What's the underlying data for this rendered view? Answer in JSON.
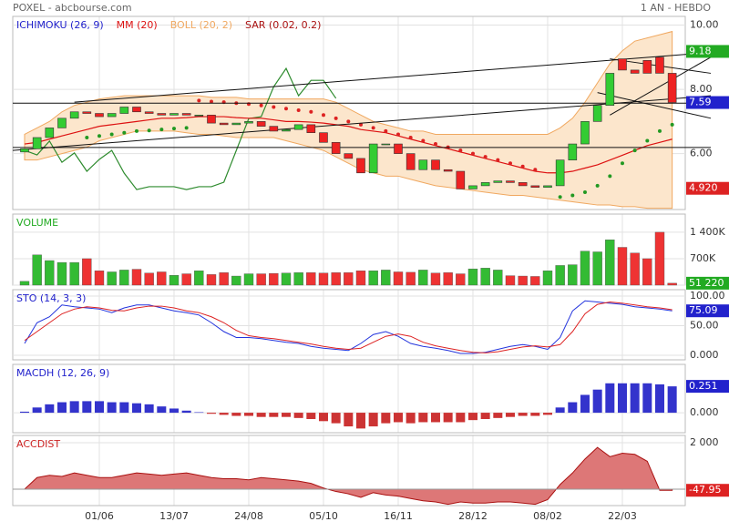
{
  "header": {
    "title": "POXEL - abcbourse.com",
    "period": "1 AN - HEBDO"
  },
  "chart_data": [
    {
      "type": "candlestick",
      "categories": [
        null,
        null,
        null,
        null,
        null,
        null,
        "01/06",
        null,
        null,
        null,
        null,
        null,
        "13/07",
        null,
        null,
        null,
        null,
        null,
        "24/08",
        null,
        null,
        null,
        null,
        null,
        "05/10",
        null,
        null,
        null,
        null,
        null,
        "16/11",
        null,
        null,
        null,
        null,
        null,
        "28/12",
        null,
        null,
        null,
        null,
        null,
        "08/02",
        null,
        null,
        null,
        null,
        null,
        "22/03",
        null,
        null,
        null,
        null
      ],
      "open": [
        6.05,
        6.15,
        6.5,
        6.8,
        7.1,
        7.3,
        7.25,
        7.15,
        7.25,
        7.45,
        7.3,
        7.25,
        7.2,
        7.25,
        7.2,
        7.2,
        6.95,
        6.9,
        6.95,
        7.0,
        6.85,
        6.7,
        6.75,
        6.9,
        6.65,
        6.35,
        6.0,
        5.85,
        5.4,
        6.3,
        6.3,
        6.0,
        5.5,
        5.8,
        5.5,
        5.45,
        4.9,
        5.0,
        5.1,
        5.15,
        5.1,
        5.0,
        4.95,
        5.0,
        5.8,
        6.3,
        7.0,
        7.5,
        8.95,
        8.6,
        8.9,
        9.0,
        8.5
      ],
      "close": [
        6.15,
        6.5,
        6.8,
        7.1,
        7.3,
        7.25,
        7.15,
        7.25,
        7.45,
        7.3,
        7.25,
        7.2,
        7.25,
        7.2,
        7.2,
        6.95,
        6.9,
        6.95,
        7.0,
        6.85,
        6.7,
        6.75,
        6.9,
        6.65,
        6.35,
        6.0,
        5.85,
        5.4,
        6.3,
        6.3,
        6.0,
        5.5,
        5.8,
        5.5,
        5.45,
        4.9,
        5.0,
        5.1,
        5.15,
        5.1,
        5.0,
        4.95,
        5.0,
        5.8,
        6.3,
        7.0,
        7.5,
        8.5,
        8.6,
        8.5,
        8.5,
        8.5,
        7.59
      ],
      "up_color": "#33cc33",
      "down_color": "#ee2222",
      "ylim": [
        4.26,
        10.27
      ],
      "yticks": [
        {
          "value": 10,
          "label": "10.00"
        },
        {
          "value": 8,
          "label": "8.00"
        },
        {
          "value": 6,
          "label": "6.00"
        }
      ],
      "bands": {
        "name": "BOLL (20, 2)",
        "color": "#f0a860",
        "fill": "#fce6cc",
        "upper": [
          6.6,
          6.8,
          7.0,
          7.3,
          7.5,
          7.6,
          7.7,
          7.75,
          7.8,
          7.8,
          7.8,
          7.8,
          7.8,
          7.8,
          7.8,
          7.75,
          7.75,
          7.75,
          7.7,
          7.7,
          7.7,
          7.7,
          7.7,
          7.7,
          7.7,
          7.6,
          7.4,
          7.2,
          7.0,
          6.9,
          6.8,
          6.7,
          6.7,
          6.6,
          6.6,
          6.6,
          6.6,
          6.6,
          6.6,
          6.6,
          6.6,
          6.6,
          6.6,
          6.8,
          7.1,
          7.6,
          8.2,
          8.8,
          9.2,
          9.5,
          9.6,
          9.7,
          9.8
        ],
        "lower": [
          5.8,
          5.8,
          5.9,
          6.0,
          6.1,
          6.2,
          6.4,
          6.5,
          6.6,
          6.7,
          6.7,
          6.7,
          6.7,
          6.65,
          6.6,
          6.6,
          6.55,
          6.5,
          6.5,
          6.5,
          6.5,
          6.4,
          6.3,
          6.2,
          6.1,
          5.9,
          5.7,
          5.5,
          5.4,
          5.3,
          5.3,
          5.2,
          5.1,
          5.0,
          4.95,
          4.9,
          4.85,
          4.8,
          4.75,
          4.7,
          4.7,
          4.65,
          4.6,
          4.55,
          4.5,
          4.45,
          4.4,
          4.4,
          4.35,
          4.35,
          4.3,
          4.3,
          4.3
        ]
      },
      "series": [
        {
          "name": "ICHIMOKU (26, 9)",
          "color": "#2222cc",
          "line_color": "#2e8b2e",
          "values": [
            6.1,
            5.96,
            6.39,
            5.73,
            6.02,
            5.45,
            5.82,
            6.1,
            5.39,
            4.88,
            4.97,
            4.97,
            4.97,
            4.88,
            4.97,
            4.97,
            5.11,
            6.1,
            7.09,
            7.15,
            8.08,
            8.65,
            7.8,
            8.28,
            8.28,
            7.72,
            null,
            null,
            null,
            null,
            null,
            null,
            null,
            null,
            null,
            null,
            null,
            null,
            null,
            null,
            null,
            null,
            null,
            null,
            null,
            null,
            null,
            null,
            null,
            null,
            null,
            null,
            null
          ]
        },
        {
          "name": "MM (20)",
          "color": "#dd1111",
          "line_color": "#dd1111",
          "values": [
            6.3,
            6.35,
            6.45,
            6.55,
            6.65,
            6.75,
            6.85,
            6.9,
            6.95,
            7.0,
            7.05,
            7.1,
            7.1,
            7.12,
            7.15,
            7.15,
            7.15,
            7.12,
            7.1,
            7.1,
            7.05,
            7.0,
            7.0,
            6.98,
            6.95,
            6.9,
            6.85,
            6.75,
            6.7,
            6.65,
            6.55,
            6.45,
            6.35,
            6.25,
            6.15,
            6.05,
            5.95,
            5.85,
            5.75,
            5.65,
            5.55,
            5.45,
            5.4,
            5.4,
            5.45,
            5.55,
            5.65,
            5.8,
            5.95,
            6.1,
            6.25,
            6.35,
            6.45
          ]
        }
      ],
      "sar": {
        "name": "SAR (0.02, 0.2)",
        "color": "#aa1111",
        "above_color": "#dd2222",
        "below_color": "#229922",
        "values": [
          null,
          null,
          null,
          null,
          null,
          6.5,
          6.55,
          6.6,
          6.65,
          6.7,
          6.72,
          6.75,
          6.78,
          6.8,
          7.65,
          7.62,
          7.6,
          7.57,
          7.54,
          7.5,
          7.45,
          7.4,
          7.35,
          7.3,
          7.2,
          7.1,
          7.0,
          6.9,
          6.8,
          6.7,
          6.6,
          6.5,
          6.4,
          6.3,
          6.2,
          6.1,
          6.0,
          5.9,
          5.8,
          5.7,
          5.6,
          5.5,
          null,
          4.65,
          4.7,
          4.8,
          5.0,
          5.3,
          5.7,
          6.1,
          6.4,
          6.7,
          6.9
        ]
      },
      "trendlines": [
        {
          "x": [
            4,
            55.1
          ],
          "y": [
            7.6,
            9.15
          ]
        },
        {
          "x": [
            -0.95,
            55.1
          ],
          "y": [
            6.1,
            7.8
          ]
        },
        {
          "x": [
            -0.95,
            55.1
          ],
          "y": [
            7.57,
            7.57
          ]
        },
        {
          "x": [
            -0.95,
            55.1
          ],
          "y": [
            6.19,
            6.19
          ]
        },
        {
          "x": [
            47,
            55.1
          ],
          "y": [
            8.95,
            8.5
          ]
        },
        {
          "x": [
            47,
            55.1
          ],
          "y": [
            7.2,
            9.0
          ]
        },
        {
          "x": [
            46,
            55.1
          ],
          "y": [
            7.9,
            7.1
          ]
        }
      ],
      "right_labels": [
        {
          "value": 9.18,
          "color": "#22aa22"
        },
        {
          "value": 7.59,
          "color": "#2222cc"
        },
        {
          "value": 4.92,
          "label": "4.920",
          "color": "#dd2222"
        }
      ]
    },
    {
      "type": "volume",
      "title": "VOLUME",
      "color": "#22aa22",
      "up_color": "#33bb33",
      "down_color": "#ee3333",
      "values": [
        100000,
        800000,
        650000,
        600000,
        600000,
        700000,
        380000,
        350000,
        400000,
        420000,
        320000,
        350000,
        260000,
        300000,
        380000,
        280000,
        330000,
        240000,
        300000,
        300000,
        310000,
        320000,
        330000,
        330000,
        320000,
        330000,
        330000,
        380000,
        380000,
        400000,
        350000,
        340000,
        400000,
        320000,
        330000,
        300000,
        430000,
        450000,
        400000,
        250000,
        240000,
        230000,
        380000,
        520000,
        540000,
        900000,
        880000,
        1200000,
        1000000,
        850000,
        700000,
        1400000,
        51220
      ],
      "ylim": [
        0,
        1880000
      ],
      "yticks": [
        {
          "value": 1400000,
          "label": "1 400K"
        },
        {
          "value": 700000,
          "label": "700K"
        },
        0
      ],
      "right_labels": [
        {
          "value": 51220,
          "label": "51 220",
          "color": "#22aa22"
        }
      ]
    },
    {
      "type": "line",
      "title": "STO (14, 3, 3)",
      "color": "#2222cc",
      "series": [
        {
          "color": "#2233dd",
          "values": [
            20,
            55,
            65,
            85,
            82,
            80,
            78,
            72,
            80,
            85,
            85,
            80,
            75,
            72,
            68,
            55,
            40,
            30,
            30,
            28,
            25,
            22,
            20,
            15,
            12,
            10,
            8,
            20,
            35,
            40,
            32,
            20,
            15,
            12,
            8,
            3,
            3,
            5,
            10,
            15,
            18,
            15,
            10,
            30,
            75,
            92,
            90,
            88,
            86,
            82,
            80,
            78,
            75.09
          ]
        },
        {
          "color": "#dd2222",
          "values": [
            25,
            40,
            55,
            70,
            78,
            82,
            80,
            76,
            75,
            80,
            83,
            83,
            80,
            75,
            72,
            65,
            55,
            42,
            33,
            30,
            28,
            25,
            22,
            19,
            15,
            12,
            10,
            12,
            22,
            32,
            36,
            32,
            22,
            16,
            12,
            8,
            5,
            4,
            6,
            10,
            14,
            16,
            14,
            18,
            40,
            70,
            86,
            90,
            88,
            85,
            82,
            80,
            77
          ]
        }
      ],
      "ylim": [
        -7.7,
        110.8
      ],
      "yticks": [
        {
          "value": 100,
          "label": "100.00"
        },
        {
          "value": 50,
          "label": "50.00"
        },
        {
          "value": 0,
          "label": "0.000"
        }
      ],
      "right_labels": [
        {
          "value": 75.09,
          "color": "#2222cc"
        }
      ]
    },
    {
      "type": "hist",
      "title": "MACDH (12, 26, 9)",
      "color": "#2222cc",
      "pos_color": "#3333cc",
      "neg_color": "#cc3333",
      "values": [
        0.01,
        0.05,
        0.08,
        0.1,
        0.11,
        0.11,
        0.11,
        0.1,
        0.1,
        0.09,
        0.08,
        0.06,
        0.04,
        0.02,
        0.005,
        -0.01,
        -0.02,
        -0.03,
        -0.03,
        -0.04,
        -0.04,
        -0.04,
        -0.05,
        -0.06,
        -0.08,
        -0.1,
        -0.13,
        -0.15,
        -0.13,
        -0.1,
        -0.09,
        -0.1,
        -0.09,
        -0.09,
        -0.09,
        -0.09,
        -0.07,
        -0.06,
        -0.05,
        -0.04,
        -0.03,
        -0.03,
        -0.02,
        0.05,
        0.1,
        0.17,
        0.22,
        0.28,
        0.28,
        0.28,
        0.28,
        0.27,
        0.251
      ],
      "ylim": [
        -0.19,
        0.46
      ],
      "yticks": [
        {
          "value": 0,
          "label": "0.000"
        }
      ],
      "right_labels": [
        {
          "value": 0.251,
          "color": "#2222cc"
        }
      ]
    },
    {
      "type": "area",
      "title": "ACCDIST",
      "color": "#cc2222",
      "fill": "#dd7777",
      "line_color": "#aa1111",
      "values": [
        0,
        500,
        600,
        550,
        700,
        600,
        500,
        500,
        600,
        700,
        650,
        600,
        650,
        700,
        600,
        500,
        450,
        450,
        400,
        500,
        450,
        400,
        350,
        250,
        50,
        -100,
        -200,
        -350,
        -150,
        -250,
        -300,
        -400,
        -500,
        -550,
        -650,
        -550,
        -600,
        -600,
        -550,
        -550,
        -600,
        -650,
        -450,
        200,
        700,
        1300,
        1800,
        1400,
        1550,
        1500,
        1200,
        -47.95,
        -47.95
      ],
      "ylim": [
        -706,
        2314
      ],
      "yticks": [
        {
          "value": 2000,
          "label": "2 000"
        }
      ],
      "right_labels": [
        {
          "value": -47.95,
          "color": "#dd2222"
        }
      ]
    }
  ]
}
